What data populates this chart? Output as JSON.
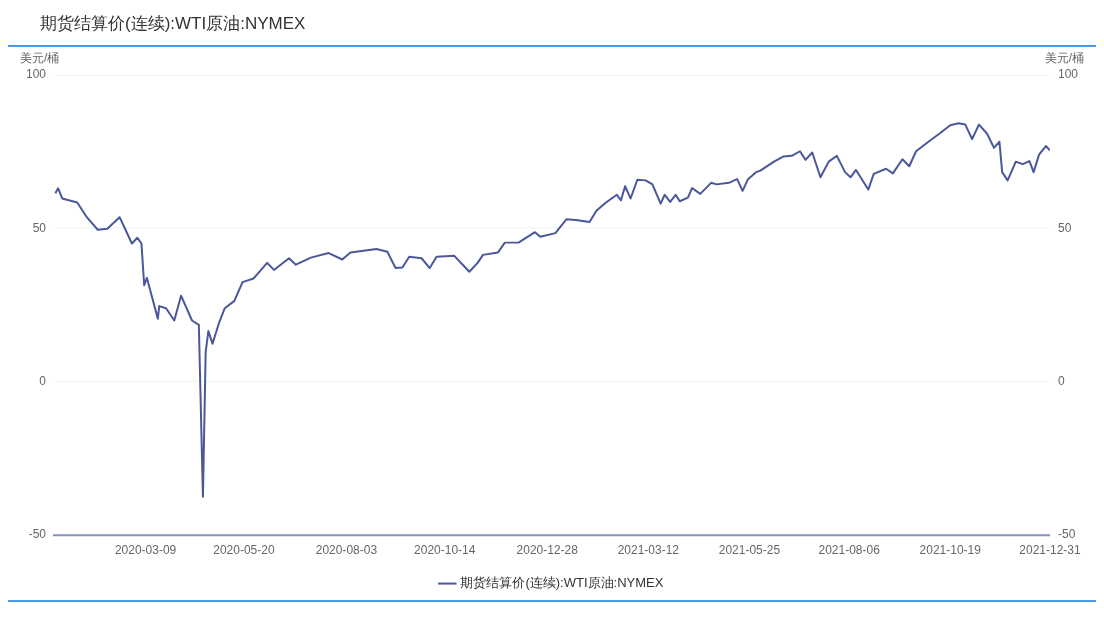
{
  "chart_data": {
    "type": "line",
    "title": "期货结算价(连续):WTI原油:NYMEX",
    "ylabel": "美元/桶",
    "y2label": "美元/桶",
    "x": [
      "2020-01-03",
      "2020-01-05",
      "2020-01-08",
      "2020-01-19",
      "2020-01-26",
      "2020-02-03",
      "2020-02-10",
      "2020-02-19",
      "2020-02-28",
      "2020-03-03",
      "2020-03-06",
      "2020-03-08",
      "2020-03-10",
      "2020-03-18",
      "2020-03-19",
      "2020-03-24",
      "2020-03-30",
      "2020-04-04",
      "2020-04-12",
      "2020-04-17",
      "2020-04-20",
      "2020-04-22",
      "2020-04-24",
      "2020-04-27",
      "2020-05-02",
      "2020-05-06",
      "2020-05-13",
      "2020-05-19",
      "2020-05-27",
      "2020-06-06",
      "2020-06-11",
      "2020-06-22",
      "2020-06-27",
      "2020-07-08",
      "2020-07-21",
      "2020-07-31",
      "2020-08-06",
      "2020-08-25",
      "2020-09-02",
      "2020-09-08",
      "2020-09-13",
      "2020-09-18",
      "2020-09-27",
      "2020-10-03",
      "2020-10-08",
      "2020-10-21",
      "2020-11-01",
      "2020-11-07",
      "2020-11-11",
      "2020-11-22",
      "2020-11-27",
      "2020-12-07",
      "2020-12-19",
      "2020-12-23",
      "2021-01-03",
      "2021-01-11",
      "2021-01-18",
      "2021-01-28",
      "2021-02-02",
      "2021-02-09",
      "2021-02-17",
      "2021-02-20",
      "2021-02-23",
      "2021-02-27",
      "2021-03-04",
      "2021-03-10",
      "2021-03-15",
      "2021-03-21",
      "2021-03-24",
      "2021-03-28",
      "2021-04-01",
      "2021-04-04",
      "2021-04-10",
      "2021-04-13",
      "2021-04-19",
      "2021-04-27",
      "2021-05-01",
      "2021-05-10",
      "2021-05-16",
      "2021-05-20",
      "2021-05-24",
      "2021-05-30",
      "2021-06-02",
      "2021-06-12",
      "2021-06-19",
      "2021-06-25",
      "2021-07-01",
      "2021-07-05",
      "2021-07-10",
      "2021-07-16",
      "2021-07-22",
      "2021-07-28",
      "2021-08-03",
      "2021-08-07",
      "2021-08-11",
      "2021-08-20",
      "2021-08-24",
      "2021-09-02",
      "2021-09-07",
      "2021-09-14",
      "2021-09-19",
      "2021-09-24",
      "2021-10-04",
      "2021-10-11",
      "2021-10-19",
      "2021-10-25",
      "2021-10-30",
      "2021-11-04",
      "2021-11-09",
      "2021-11-15",
      "2021-11-20",
      "2021-11-24",
      "2021-11-26",
      "2021-11-30",
      "2021-12-06",
      "2021-12-11",
      "2021-12-16",
      "2021-12-19",
      "2021-12-23",
      "2021-12-28",
      "2021-12-31"
    ],
    "series": [
      {
        "name": "期货结算价(连续):WTI原油:NYMEX",
        "color": "#4a5899",
        "values": [
          61.4,
          63,
          59.7,
          58.4,
          53.6,
          49.5,
          49.8,
          53.6,
          45,
          46.9,
          45,
          31.4,
          33.8,
          20.5,
          24.6,
          23.9,
          19.9,
          28,
          19.9,
          18.5,
          -37.6,
          9.7,
          16.5,
          12.3,
          19.4,
          23.9,
          26.3,
          32.4,
          33.6,
          38.7,
          36.4,
          40.2,
          38.1,
          40.4,
          41.9,
          39.8,
          42.1,
          43.2,
          42.3,
          37,
          37.2,
          40.7,
          40.2,
          37,
          40.7,
          41,
          35.8,
          38.7,
          41.3,
          42.1,
          45.3,
          45.3,
          48.7,
          47.2,
          48.4,
          52.9,
          52.7,
          52,
          55.7,
          58.4,
          60.9,
          59.1,
          63.7,
          59.7,
          65.8,
          65.6,
          64.3,
          58,
          60.9,
          58.6,
          60.9,
          58.8,
          60,
          63.1,
          61.2,
          64.8,
          64.3,
          64.8,
          66,
          62.2,
          66,
          68.3,
          68.8,
          71.7,
          73.4,
          73.6,
          75.1,
          72.3,
          74.7,
          66.6,
          71.7,
          73.6,
          68.3,
          66.6,
          69,
          62.6,
          67.7,
          69.4,
          67.9,
          72.5,
          70.2,
          75.1,
          78.5,
          80.8,
          83.6,
          84.2,
          83.8,
          79.1,
          83.8,
          80.8,
          76.2,
          78.2,
          68.3,
          65.6,
          71.7,
          70.9,
          71.9,
          68.3,
          74,
          76.8,
          75.4
        ]
      }
    ],
    "xlim": [
      "2020-01-02",
      "2021-12-31"
    ],
    "xticks": [
      "2020-03-09",
      "2020-05-20",
      "2020-08-03",
      "2020-10-14",
      "2020-12-28",
      "2021-03-12",
      "2021-05-25",
      "2021-08-06",
      "2021-10-19",
      "2021-12-31"
    ],
    "ylim": [
      -50,
      100
    ],
    "yticks": [
      -50,
      0,
      50,
      100
    ],
    "y2lim": [
      -50,
      100
    ],
    "y2ticks": [
      -50,
      0,
      50,
      100
    ],
    "grid": "y",
    "legend": "bottom",
    "marker": "none",
    "line_style": "solid"
  }
}
